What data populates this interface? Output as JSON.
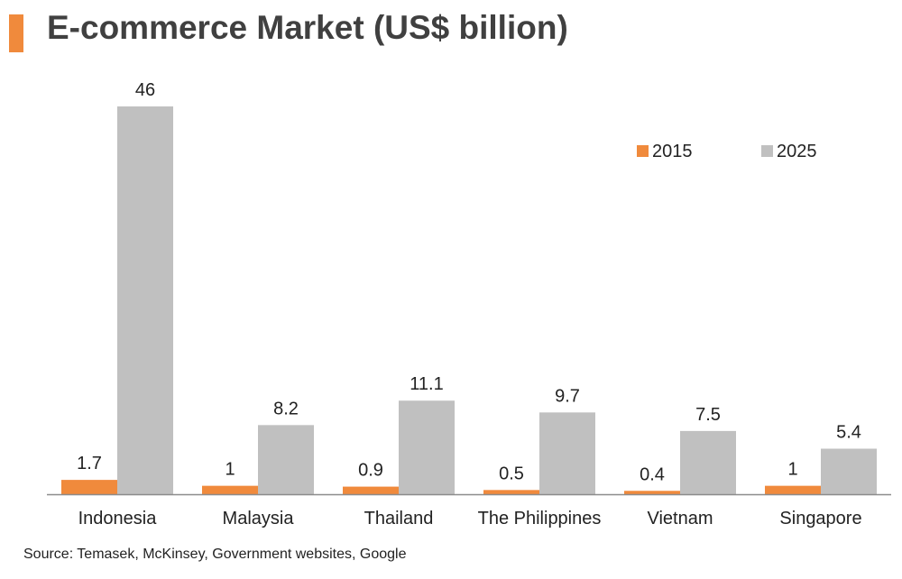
{
  "chart_data": {
    "type": "bar",
    "title": "E-commerce Market (US$ billion)",
    "categories": [
      "Indonesia",
      "Malaysia",
      "Thailand",
      "The Philippines",
      "Vietnam",
      "Singapore"
    ],
    "series": [
      {
        "name": "2015",
        "color": "#f08a3c",
        "values": [
          1.7,
          1,
          0.9,
          0.5,
          0.4,
          1
        ],
        "labels": [
          "1.7",
          "1",
          "0.9",
          "0.5",
          "0.4",
          "1"
        ]
      },
      {
        "name": "2025",
        "color": "#c0c0c0",
        "values": [
          46,
          8.2,
          11.1,
          9.7,
          7.5,
          5.4
        ],
        "labels": [
          "46",
          "8.2",
          "11.1",
          "9.7",
          "7.5",
          "5.4"
        ]
      }
    ],
    "xlabel": "",
    "ylabel": "",
    "ylim": [
      0,
      46
    ],
    "grid": false,
    "legend_position": "top-right",
    "data_labels": true
  },
  "source": "Source: Temasek, McKinsey, Government websites, Google"
}
